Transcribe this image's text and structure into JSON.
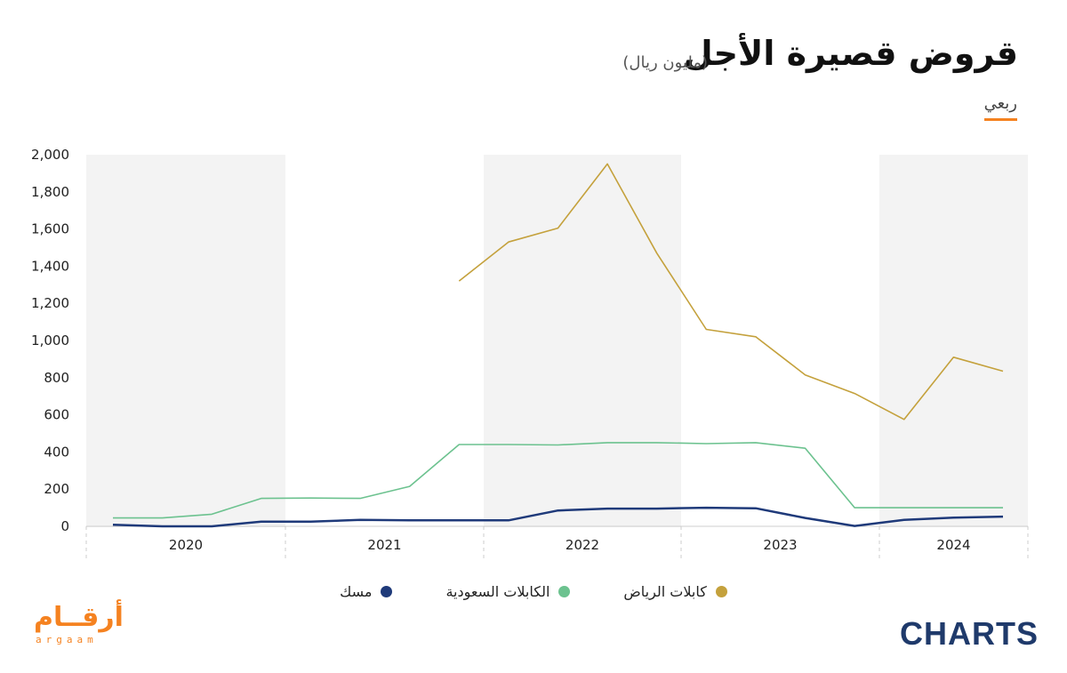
{
  "header": {
    "title": "قروض قصيرة الأجل",
    "subtitle": "(مليون ريال)",
    "tab_label": "ربعي"
  },
  "branding": {
    "left_logo_ar": "أرقــام",
    "left_logo_en": "argaam",
    "right_logo": "CHARTS"
  },
  "colors": {
    "riyadh": "#c4a13c",
    "saudi": "#6cc28f",
    "mask": "#1f3a7a",
    "band": "#f3f3f3",
    "accent": "#f58220"
  },
  "chart_data": {
    "type": "line",
    "x": [
      "2020 Q1",
      "2020 Q2",
      "2020 Q3",
      "2020 Q4",
      "2021 Q1",
      "2021 Q2",
      "2021 Q3",
      "2021 Q4",
      "2022 Q1",
      "2022 Q2",
      "2022 Q3",
      "2022 Q4",
      "2023 Q1",
      "2023 Q2",
      "2023 Q3",
      "2023 Q4",
      "2024 Q1",
      "2024 Q2",
      "2024 Q3"
    ],
    "year_labels": [
      "2020",
      "2021",
      "2022",
      "2023",
      "2024"
    ],
    "ylim": [
      0,
      2000
    ],
    "yticks": [
      "2,000",
      "1,800",
      "1,600",
      "1,400",
      "1,200",
      "1,000",
      "800",
      "600",
      "400",
      "200",
      "0"
    ],
    "ytick_values": [
      2000,
      1800,
      1600,
      1400,
      1200,
      1000,
      800,
      600,
      400,
      200,
      0
    ],
    "grid": false,
    "legend_position": "bottom",
    "series": [
      {
        "name": "كابلات الرياض",
        "color_key": "riyadh",
        "values": [
          null,
          null,
          null,
          null,
          null,
          null,
          null,
          1320,
          1530,
          1605,
          1950,
          1470,
          1060,
          1020,
          815,
          715,
          575,
          910,
          835
        ]
      },
      {
        "name": "الكابلات السعودية",
        "color_key": "saudi",
        "values": [
          45,
          45,
          65,
          150,
          152,
          150,
          215,
          440,
          440,
          438,
          450,
          450,
          445,
          450,
          420,
          100,
          100,
          100,
          100
        ]
      },
      {
        "name": "مسك",
        "color_key": "mask",
        "values": [
          8,
          0,
          0,
          25,
          25,
          35,
          32,
          32,
          32,
          85,
          95,
          95,
          100,
          97,
          45,
          2,
          35,
          47,
          52
        ]
      }
    ]
  }
}
